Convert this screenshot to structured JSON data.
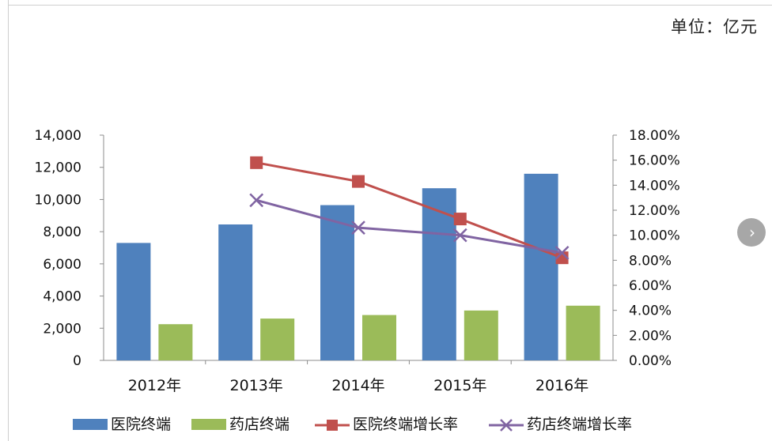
{
  "unit_text": "单位：亿元",
  "next_icon": "chevron-right-icon",
  "colors": {
    "hospital_bar": "#4F81BD",
    "pharmacy_bar": "#9BBB59",
    "hospital_rate": "#C0504D",
    "pharmacy_rate": "#8064A2",
    "axis": "#8c8c8c"
  },
  "chart_data": {
    "type": "bar",
    "categories": [
      "2012年",
      "2013年",
      "2014年",
      "2015年",
      "2016年"
    ],
    "series": [
      {
        "name": "医院终端",
        "kind": "bar",
        "axis": "left",
        "values": [
          7300,
          8450,
          9650,
          10700,
          11600
        ]
      },
      {
        "name": "药店终端",
        "kind": "bar",
        "axis": "left",
        "values": [
          2250,
          2600,
          2820,
          3100,
          3400
        ]
      },
      {
        "name": "医院终端增长率",
        "kind": "line",
        "marker": "square",
        "axis": "right",
        "values": [
          null,
          0.158,
          0.143,
          0.113,
          0.082
        ]
      },
      {
        "name": "药店终端增长率",
        "kind": "line",
        "marker": "x",
        "axis": "right",
        "values": [
          null,
          0.128,
          0.106,
          0.1,
          0.086
        ]
      }
    ],
    "left_axis": {
      "ylim": [
        0,
        14000
      ],
      "ticks": [
        "0",
        "2,000",
        "4,000",
        "6,000",
        "8,000",
        "10,000",
        "12,000",
        "14,000"
      ]
    },
    "right_axis": {
      "ylim": [
        0,
        0.18
      ],
      "ticks": [
        "0.00%",
        "2.00%",
        "4.00%",
        "6.00%",
        "8.00%",
        "10.00%",
        "12.00%",
        "14.00%",
        "16.00%",
        "18.00%"
      ]
    },
    "grid": false,
    "legend_position": "bottom"
  }
}
